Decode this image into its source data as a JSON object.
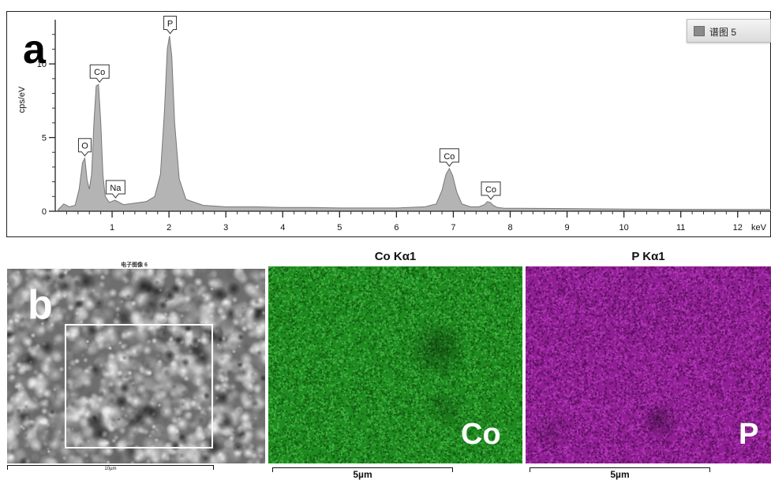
{
  "panel_a": {
    "letter": "a"
  },
  "panel_b": {
    "letter": "b"
  },
  "legend": {
    "label": "谱图 5",
    "swatch_color": "#8a8a8a"
  },
  "chart_data": {
    "type": "area",
    "xlabel": "keV",
    "ylabel": "cps/eV",
    "xlim": [
      0,
      12.6
    ],
    "ylim": [
      0,
      13
    ],
    "xticks": [
      1,
      2,
      3,
      4,
      5,
      6,
      7,
      8,
      9,
      10,
      11,
      12
    ],
    "yticks": [
      0,
      5,
      10
    ],
    "fill_color": "#b4b4b4",
    "line_color": "#777777",
    "series": [
      {
        "x": [
          0.05,
          0.15,
          0.25,
          0.35,
          0.42,
          0.48,
          0.52,
          0.56,
          0.6,
          0.64,
          0.68,
          0.72,
          0.76,
          0.8,
          0.84,
          0.88,
          0.95,
          1.05,
          1.2,
          1.4,
          1.6,
          1.75,
          1.85,
          1.92,
          1.97,
          2.01,
          2.05,
          2.1,
          2.18,
          2.3,
          2.6,
          3.0,
          3.5,
          4.0,
          4.5,
          5.0,
          5.5,
          6.0,
          6.5,
          6.7,
          6.8,
          6.87,
          6.93,
          6.99,
          7.06,
          7.15,
          7.3,
          7.45,
          7.55,
          7.6,
          7.65,
          7.7,
          7.78,
          7.9,
          8.2,
          9.0,
          10.0,
          11.0,
          12.0,
          12.6
        ],
        "y": [
          0.1,
          0.5,
          0.3,
          0.4,
          1.5,
          3.3,
          3.6,
          2.1,
          1.5,
          2.5,
          6.0,
          8.5,
          8.6,
          6.0,
          2.4,
          1.0,
          0.6,
          0.75,
          0.45,
          0.55,
          0.65,
          1.0,
          2.5,
          6.8,
          11.0,
          11.9,
          10.5,
          6.0,
          2.2,
          0.8,
          0.4,
          0.3,
          0.3,
          0.25,
          0.25,
          0.22,
          0.22,
          0.22,
          0.3,
          0.5,
          1.4,
          2.5,
          2.9,
          2.4,
          1.3,
          0.5,
          0.3,
          0.3,
          0.45,
          0.65,
          0.6,
          0.4,
          0.25,
          0.2,
          0.2,
          0.18,
          0.15,
          0.13,
          0.12,
          0.12
        ]
      }
    ],
    "peak_labels": [
      {
        "label": "O",
        "x": 0.52,
        "y": 3.6
      },
      {
        "label": "Co",
        "x": 0.78,
        "y": 8.6
      },
      {
        "label": "Na",
        "x": 1.06,
        "y": 0.75
      },
      {
        "label": "P",
        "x": 2.02,
        "y": 11.9
      },
      {
        "label": "Co",
        "x": 6.93,
        "y": 2.9
      },
      {
        "label": "Co",
        "x": 7.66,
        "y": 0.65
      }
    ]
  },
  "sem": {
    "title": "电子图像 6",
    "scale_label": "10µm"
  },
  "co_map": {
    "title": "Co Kα1",
    "element": "Co",
    "scale_label": "5µm",
    "color": "#1f8a1f"
  },
  "p_map": {
    "title": "P Kα1",
    "element": "P",
    "scale_label": "5µm",
    "color": "#8f1f93"
  }
}
